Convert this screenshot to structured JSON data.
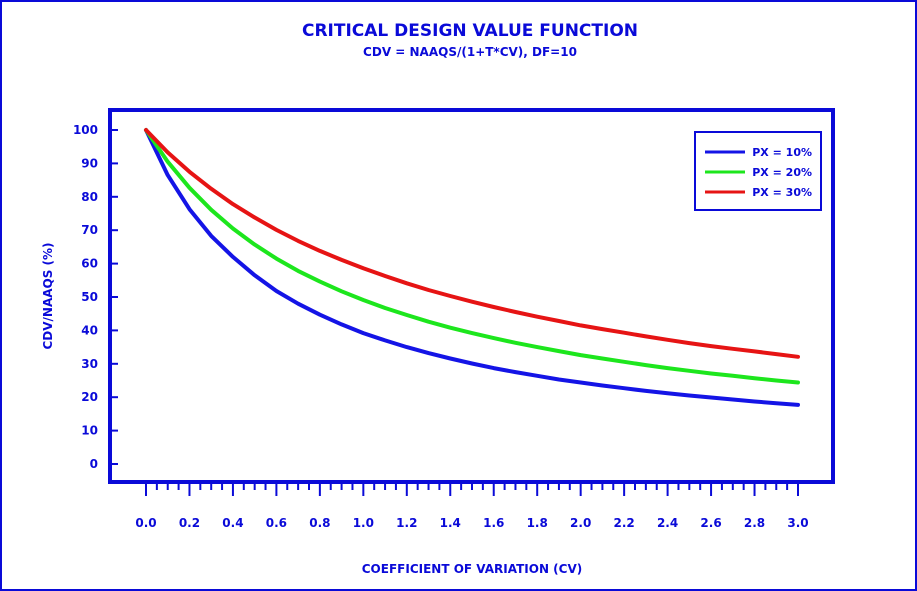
{
  "chart_data": {
    "type": "line",
    "title": "CRITICAL DESIGN VALUE FUNCTION",
    "subtitle": "CDV = NAAQS/(1+T*CV), DF=10",
    "xlabel": "COEFFICIENT OF VARIATION (CV)",
    "ylabel": "CDV/NAAQS (%)",
    "xlim": [
      0,
      3
    ],
    "ylim": [
      -5,
      105
    ],
    "xticks": [
      0.0,
      0.2,
      0.4,
      0.6,
      0.8,
      1.0,
      1.2,
      1.4,
      1.6,
      1.8,
      2.0,
      2.2,
      2.4,
      2.6,
      2.8,
      3.0
    ],
    "xtick_labels": [
      "0.0",
      "0.2",
      "0.4",
      "0.6",
      "0.8",
      "1.0",
      "1.2",
      "1.4",
      "1.6",
      "1.8",
      "2.0",
      "2.2",
      "2.4",
      "2.6",
      "2.8",
      "3.0"
    ],
    "yticks": [
      0,
      10,
      20,
      30,
      40,
      50,
      60,
      70,
      80,
      90,
      100
    ],
    "ytick_labels": [
      "0",
      "10",
      "20",
      "30",
      "40",
      "50",
      "60",
      "70",
      "80",
      "90",
      "100"
    ],
    "legend_position": "top-right",
    "grid": false,
    "x": [
      0.0,
      0.1,
      0.2,
      0.3,
      0.4,
      0.5,
      0.6,
      0.7,
      0.8,
      0.9,
      1.0,
      1.1,
      1.2,
      1.3,
      1.4,
      1.5,
      1.6,
      1.7,
      1.8,
      1.9,
      2.0,
      2.1,
      2.2,
      2.3,
      2.4,
      2.5,
      2.6,
      2.7,
      2.8,
      2.9,
      3.0
    ],
    "series": [
      {
        "name": "PX = 10%",
        "color": "#1414e6",
        "values": [
          100,
          86.5,
          76.3,
          68.3,
          62.0,
          56.5,
          51.8,
          48.0,
          44.7,
          41.8,
          39.2,
          37.0,
          35.0,
          33.2,
          31.6,
          30.1,
          28.7,
          27.5,
          26.4,
          25.3,
          24.4,
          23.5,
          22.7,
          21.9,
          21.2,
          20.5,
          19.9,
          19.3,
          18.7,
          18.2,
          17.7
        ]
      },
      {
        "name": "PX = 20%",
        "color": "#1de61d",
        "values": [
          100,
          90.5,
          82.7,
          76.1,
          70.5,
          65.7,
          61.5,
          57.8,
          54.6,
          51.7,
          49.1,
          46.7,
          44.6,
          42.6,
          40.8,
          39.2,
          37.7,
          36.3,
          35.0,
          33.8,
          32.6,
          31.6,
          30.6,
          29.6,
          28.7,
          27.9,
          27.1,
          26.4,
          25.7,
          25.0,
          24.4
        ]
      },
      {
        "name": "PX = 30%",
        "color": "#e61414",
        "values": [
          100,
          93.3,
          87.5,
          82.4,
          77.8,
          73.8,
          70.1,
          66.8,
          63.8,
          61.1,
          58.6,
          56.3,
          54.1,
          52.1,
          50.3,
          48.6,
          47.0,
          45.5,
          44.1,
          42.8,
          41.5,
          40.4,
          39.3,
          38.2,
          37.2,
          36.2,
          35.3,
          34.5,
          33.7,
          32.9,
          32.1
        ]
      }
    ]
  }
}
